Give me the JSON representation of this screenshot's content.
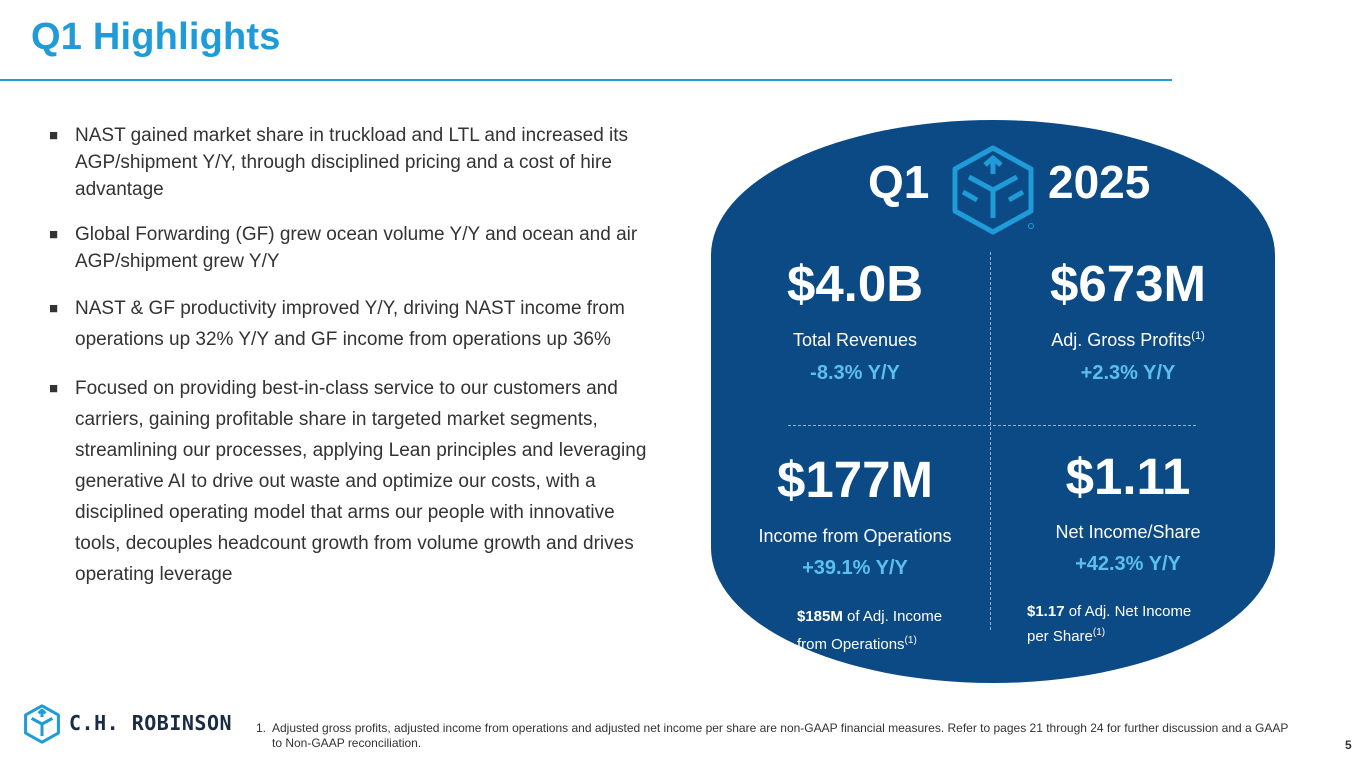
{
  "title": "Q1 Highlights",
  "bullets": [
    "NAST gained market share in truckload and LTL and increased its AGP/shipment Y/Y, through disciplined pricing and a cost of hire advantage",
    "Global Forwarding (GF) grew ocean volume Y/Y and ocean and air AGP/shipment grew Y/Y",
    "NAST & GF productivity improved Y/Y, driving NAST income from operations up 32% Y/Y and GF income from operations up 36%",
    "Focused on providing best-in-class service to our customers and carriers, gaining profitable share in targeted market segments, streamlining our processes, applying Lean principles and leveraging generative AI to drive out waste and optimize our costs, with a disciplined operating model that arms our people with innovative tools, decouples headcount growth from volume growth and drives operating leverage"
  ],
  "bullet_marker": "■",
  "panel": {
    "quarter": "Q1",
    "year": "2025",
    "revenue": {
      "value": "$4.0B",
      "label": "Total Revenues",
      "change": "-8.3% Y/Y"
    },
    "agp": {
      "value": "$673M",
      "label": "Adj. Gross Profits",
      "sup": "(1)",
      "change": "+2.3% Y/Y"
    },
    "income": {
      "value": "$177M",
      "label": "Income from Operations",
      "change": "+39.1% Y/Y",
      "note_value": "$185M",
      "note_text1": " of Adj. Income",
      "note_text2": "from Operations",
      "note_sup": "(1)"
    },
    "eps": {
      "value": "$1.11",
      "label": "Net Income/Share",
      "change": "+42.3% Y/Y",
      "note_value": "$1.17",
      "note_text1": " of Adj. Net Income",
      "note_text2": "per Share",
      "note_sup": "(1)"
    }
  },
  "logo_text": "C.H. ROBINSON",
  "footnote": {
    "number": "1.",
    "text": "Adjusted gross profits, adjusted income from operations and adjusted net income per share are non-GAAP financial measures. Refer to pages 21 through 24 for further discussion and a GAAP to Non-GAAP reconciliation."
  },
  "page_number": "5",
  "colors": {
    "accent": "#1f9bd7",
    "panel": "#0b4a85",
    "change": "#5cc0ee"
  }
}
